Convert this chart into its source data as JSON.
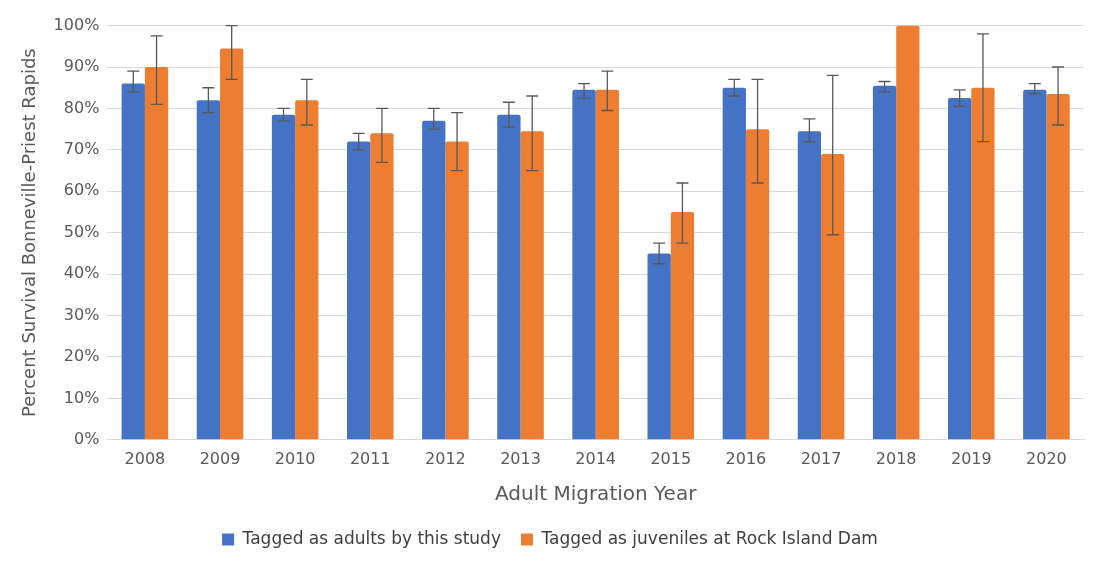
{
  "chart_data": {
    "type": "bar",
    "xlabel": "Adult Migration Year",
    "ylabel": "Percent Survival Bonneville-Priest Rapids",
    "categories": [
      "2008",
      "2009",
      "2010",
      "2011",
      "2012",
      "2013",
      "2014",
      "2015",
      "2016",
      "2017",
      "2018",
      "2019",
      "2020"
    ],
    "series": [
      {
        "name": "Tagged as adults by this study",
        "color": "#4472c4",
        "values": [
          86,
          82,
          78.5,
          72,
          77,
          78.5,
          84.5,
          45,
          85,
          74.5,
          85.5,
          82.5,
          84.5
        ],
        "errors": [
          [
            84,
            89
          ],
          [
            79,
            85
          ],
          [
            77,
            80
          ],
          [
            70,
            74
          ],
          [
            75,
            80
          ],
          [
            75.5,
            81.5
          ],
          [
            82.5,
            86
          ],
          [
            42.5,
            47.5
          ],
          [
            83,
            87
          ],
          [
            72,
            77.5
          ],
          [
            84,
            86.5
          ],
          [
            80.5,
            84.5
          ],
          [
            83.5,
            86
          ]
        ]
      },
      {
        "name": "Tagged as juveniles at Rock Island Dam",
        "color": "#ed7d31",
        "values": [
          90,
          94.5,
          82,
          74,
          72,
          74.5,
          84.5,
          55,
          75,
          69,
          100,
          85,
          83.5
        ],
        "errors": [
          [
            81,
            97.5
          ],
          [
            87,
            100
          ],
          [
            76,
            87
          ],
          [
            67,
            80
          ],
          [
            65,
            79
          ],
          [
            65,
            83
          ],
          [
            79.5,
            89
          ],
          [
            47.5,
            62
          ],
          [
            62,
            87
          ],
          [
            49.5,
            88
          ],
          null,
          [
            72,
            98
          ],
          [
            76,
            90
          ]
        ]
      }
    ],
    "ylim": [
      0,
      100
    ],
    "yticks": [
      {
        "value": 0,
        "label": "0%"
      },
      {
        "value": 10,
        "label": "10%"
      },
      {
        "value": 20,
        "label": "20%"
      },
      {
        "value": 30,
        "label": "30%"
      },
      {
        "value": 40,
        "label": "40%"
      },
      {
        "value": 50,
        "label": "50%"
      },
      {
        "value": 60,
        "label": "60%"
      },
      {
        "value": 70,
        "label": "70%"
      },
      {
        "value": 80,
        "label": "80%"
      },
      {
        "value": 90,
        "label": "90%"
      },
      {
        "value": 100,
        "label": "100%"
      }
    ],
    "grid": "y",
    "legend": "bottom"
  }
}
